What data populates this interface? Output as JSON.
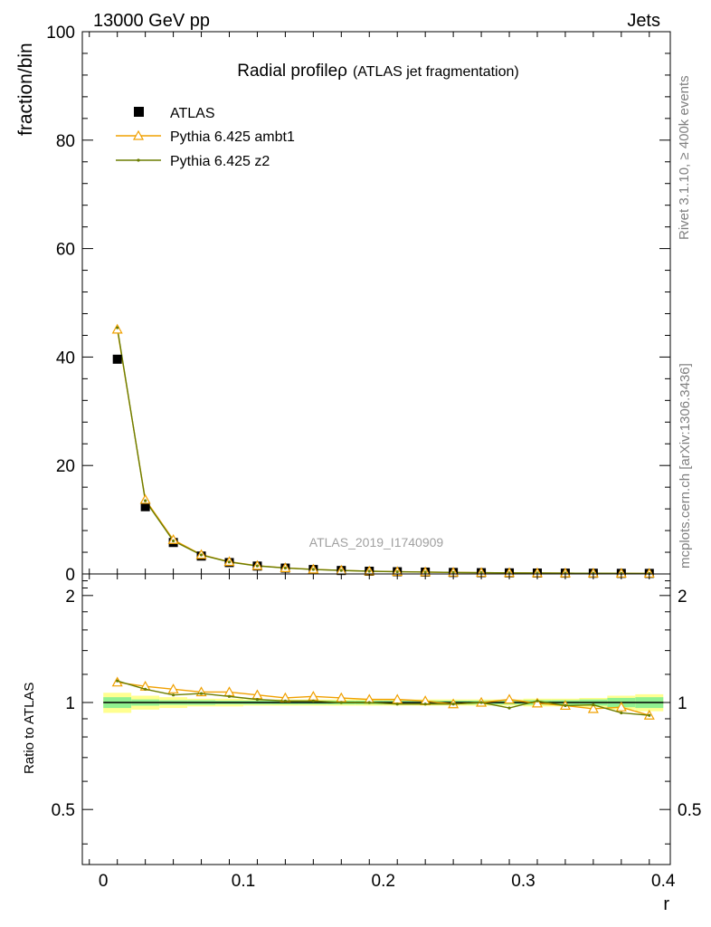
{
  "header": {
    "left": "13000 GeV pp",
    "right": "Jets"
  },
  "side": {
    "rivet": "Rivet 3.1.10, ≥ 400k events",
    "mcplots": "mcplots.cern.ch [arXiv:1306.3436]"
  },
  "watermark": "ATLAS_2019_I1740909",
  "chart_data": [
    {
      "type": "scatter",
      "panel": "main",
      "title": "Radial profileρ",
      "subtitle": "(ATLAS jet fragmentation)",
      "ylabel": "fraction/bin",
      "xlim": [
        -0.015,
        0.405
      ],
      "ylim": [
        0,
        100
      ],
      "yticks": [
        0,
        20,
        40,
        60,
        80,
        100
      ],
      "legend_position": "top-left",
      "x": [
        0.01,
        0.03,
        0.05,
        0.07,
        0.09,
        0.11,
        0.13,
        0.15,
        0.17,
        0.19,
        0.21,
        0.23,
        0.25,
        0.27,
        0.29,
        0.31,
        0.33,
        0.35,
        0.37,
        0.39
      ],
      "series": [
        {
          "name": "ATLAS",
          "style": "marker",
          "color": "#000000",
          "values": [
            39.6,
            12.4,
            5.8,
            3.3,
            2.1,
            1.45,
            1.08,
            0.82,
            0.64,
            0.5,
            0.41,
            0.34,
            0.28,
            0.24,
            0.2,
            0.17,
            0.15,
            0.13,
            0.11,
            0.1
          ]
        },
        {
          "name": "Pythia 6.425 ambt1",
          "style": "line-triangle",
          "color": "#f0a000",
          "values": [
            45.1,
            13.7,
            6.3,
            3.55,
            2.25,
            1.52,
            1.11,
            0.85,
            0.66,
            0.51,
            0.42,
            0.345,
            0.282,
            0.24,
            0.205,
            0.17,
            0.148,
            0.125,
            0.106,
            0.092
          ]
        },
        {
          "name": "Pythia 6.425 z2",
          "style": "line-dot",
          "color": "#6b7d00",
          "values": [
            45.4,
            13.5,
            6.1,
            3.5,
            2.2,
            1.48,
            1.09,
            0.83,
            0.645,
            0.5,
            0.405,
            0.337,
            0.277,
            0.239,
            0.193,
            0.172,
            0.148,
            0.128,
            0.103,
            0.092
          ]
        }
      ]
    },
    {
      "type": "line",
      "panel": "ratio",
      "ylabel": "Ratio to ATLAS",
      "xlabel": "r",
      "xlim": [
        -0.015,
        0.405
      ],
      "ylim": [
        0.35,
        2.3
      ],
      "yticks": [
        0.5,
        1,
        2
      ],
      "xticks": [
        0,
        0.1,
        0.2,
        0.3,
        0.4
      ],
      "x": [
        0.01,
        0.03,
        0.05,
        0.07,
        0.09,
        0.11,
        0.13,
        0.15,
        0.17,
        0.19,
        0.21,
        0.23,
        0.25,
        0.27,
        0.29,
        0.31,
        0.33,
        0.35,
        0.37,
        0.39
      ],
      "bands": {
        "stat_color": "#90f090",
        "total_color": "#ffff90",
        "stat_halfwidth": [
          0.035,
          0.02,
          0.015,
          0.015,
          0.012,
          0.012,
          0.012,
          0.012,
          0.012,
          0.012,
          0.012,
          0.012,
          0.012,
          0.012,
          0.012,
          0.015,
          0.015,
          0.02,
          0.03,
          0.035
        ],
        "total_halfwidth": [
          0.065,
          0.045,
          0.035,
          0.025,
          0.025,
          0.02,
          0.02,
          0.02,
          0.02,
          0.02,
          0.02,
          0.02,
          0.02,
          0.02,
          0.02,
          0.025,
          0.025,
          0.03,
          0.045,
          0.055
        ]
      },
      "series": [
        {
          "name": "Pythia 6.425 ambt1",
          "color": "#f0a000",
          "values": [
            1.14,
            1.11,
            1.09,
            1.07,
            1.07,
            1.05,
            1.03,
            1.04,
            1.03,
            1.02,
            1.02,
            1.01,
            0.99,
            1.0,
            1.02,
            0.995,
            0.98,
            0.96,
            0.97,
            0.92
          ]
        },
        {
          "name": "Pythia 6.425 z2",
          "color": "#6b7d00",
          "values": [
            1.15,
            1.09,
            1.05,
            1.06,
            1.04,
            1.02,
            1.01,
            1.01,
            1.0,
            1.0,
            0.99,
            0.99,
            0.99,
            1.0,
            0.965,
            1.01,
            0.98,
            0.985,
            0.935,
            0.92
          ]
        }
      ]
    }
  ]
}
